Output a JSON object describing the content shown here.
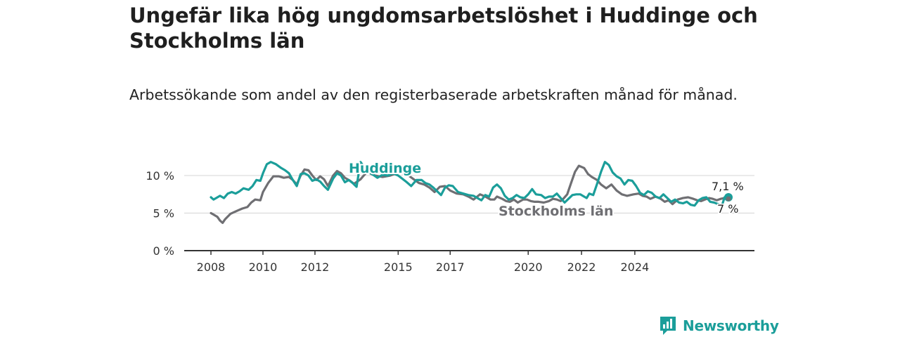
{
  "title": "Ungefär lika hög ungdomsarbetslöshet i Huddinge och Stockholms län",
  "subtitle": "Arbetssökande som andel av den registerbaserade arbetskraften månad för månad.",
  "logo": {
    "text": "Newsworthy",
    "icon": "newsworthy-chart-icon",
    "color": "#1b9e9a"
  },
  "chart_data": {
    "type": "line",
    "x_ticks": [
      "2008",
      "2010",
      "2012",
      "2015",
      "2017",
      "2020",
      "2022",
      "2024"
    ],
    "y_ticks": [
      "0 %",
      "5 %",
      "10 %"
    ],
    "ylim": [
      0,
      10
    ],
    "grid": true,
    "series": [
      {
        "name": "Stockholms län",
        "color": "#6f6f73",
        "end_label": "7 %",
        "points": [
          [
            2008.0,
            5.0
          ],
          [
            2008.1,
            4.8
          ],
          [
            2008.25,
            4.5
          ],
          [
            2008.35,
            4.0
          ],
          [
            2008.45,
            3.7
          ],
          [
            2008.55,
            4.2
          ],
          [
            2008.75,
            4.9
          ],
          [
            2009.0,
            5.3
          ],
          [
            2009.2,
            5.6
          ],
          [
            2009.4,
            5.8
          ],
          [
            2009.55,
            6.4
          ],
          [
            2009.7,
            6.8
          ],
          [
            2009.9,
            6.7
          ],
          [
            2010.0,
            7.8
          ],
          [
            2010.2,
            9.0
          ],
          [
            2010.4,
            9.9
          ],
          [
            2010.6,
            9.9
          ],
          [
            2010.8,
            9.7
          ],
          [
            2011.0,
            9.8
          ],
          [
            2011.15,
            9.4
          ],
          [
            2011.3,
            8.8
          ],
          [
            2011.45,
            10.0
          ],
          [
            2011.6,
            10.8
          ],
          [
            2011.75,
            10.7
          ],
          [
            2011.9,
            10.0
          ],
          [
            2012.05,
            9.4
          ],
          [
            2012.2,
            9.9
          ],
          [
            2012.35,
            9.5
          ],
          [
            2012.5,
            8.6
          ],
          [
            2012.7,
            10.0
          ],
          [
            2012.85,
            10.6
          ],
          [
            2013.0,
            10.3
          ],
          [
            2013.15,
            9.7
          ],
          [
            2013.35,
            9.3
          ],
          [
            2013.5,
            8.9
          ],
          [
            2013.75,
            9.5
          ],
          [
            2014.0,
            10.5
          ],
          [
            2014.3,
            10.0
          ],
          [
            2014.6,
            9.8
          ],
          [
            2014.9,
            10.0
          ],
          [
            2015.2,
            10.4
          ],
          [
            2015.4,
            10.3
          ],
          [
            2015.6,
            10.0
          ],
          [
            2015.8,
            9.5
          ],
          [
            2016.0,
            9.0
          ],
          [
            2016.2,
            8.8
          ],
          [
            2016.4,
            8.4
          ],
          [
            2016.6,
            7.8
          ],
          [
            2016.8,
            8.5
          ],
          [
            2017.0,
            8.6
          ],
          [
            2017.2,
            8.0
          ],
          [
            2017.45,
            7.6
          ],
          [
            2017.7,
            7.5
          ],
          [
            2017.9,
            7.2
          ],
          [
            2018.1,
            6.8
          ],
          [
            2018.35,
            7.5
          ],
          [
            2018.55,
            7.2
          ],
          [
            2018.75,
            6.8
          ],
          [
            2018.9,
            6.8
          ],
          [
            2019.0,
            7.2
          ],
          [
            2019.2,
            6.9
          ],
          [
            2019.35,
            6.6
          ],
          [
            2019.5,
            6.5
          ],
          [
            2019.65,
            6.8
          ],
          [
            2019.8,
            6.4
          ],
          [
            2020.0,
            6.8
          ],
          [
            2020.15,
            6.8
          ],
          [
            2020.3,
            6.6
          ],
          [
            2020.45,
            6.5
          ],
          [
            2020.6,
            6.5
          ],
          [
            2020.8,
            6.4
          ],
          [
            2021.0,
            6.6
          ],
          [
            2021.15,
            6.9
          ],
          [
            2021.3,
            6.8
          ],
          [
            2021.45,
            6.6
          ],
          [
            2021.55,
            6.9
          ],
          [
            2021.7,
            7.5
          ],
          [
            2021.85,
            9.0
          ],
          [
            2022.0,
            10.5
          ],
          [
            2022.15,
            11.3
          ],
          [
            2022.35,
            11.0
          ],
          [
            2022.5,
            10.2
          ],
          [
            2022.65,
            9.8
          ],
          [
            2022.85,
            9.4
          ],
          [
            2023.0,
            8.8
          ],
          [
            2023.2,
            8.3
          ],
          [
            2023.4,
            8.8
          ],
          [
            2023.6,
            8.0
          ],
          [
            2023.8,
            7.5
          ],
          [
            2024.0,
            7.3
          ],
          [
            2024.25,
            7.5
          ],
          [
            2024.45,
            7.6
          ],
          [
            2024.6,
            7.3
          ],
          [
            2024.75,
            7.2
          ],
          [
            2024.9,
            6.9
          ],
          [
            2025.1,
            7.2
          ],
          [
            2025.3,
            6.9
          ],
          [
            2025.45,
            6.5
          ],
          [
            2025.6,
            6.7
          ],
          [
            2025.75,
            6.2
          ],
          [
            2025.95,
            6.8
          ],
          [
            2026.15,
            7.0
          ],
          [
            2026.35,
            7.1
          ],
          [
            2026.55,
            6.9
          ],
          [
            2026.7,
            6.7
          ],
          [
            2026.85,
            6.6
          ],
          [
            2027.0,
            6.8
          ],
          [
            2027.15,
            7.0
          ],
          [
            2027.3,
            6.9
          ],
          [
            2027.45,
            6.7
          ],
          [
            2027.6,
            6.9
          ],
          [
            2027.75,
            7.0
          ],
          [
            2027.9,
            6.9
          ]
        ]
      },
      {
        "name": "Huddinge",
        "color": "#1b9e9a",
        "end_label": "7,1 %",
        "points": [
          [
            2008.0,
            7.1
          ],
          [
            2008.1,
            6.8
          ],
          [
            2008.2,
            7.0
          ],
          [
            2008.35,
            7.3
          ],
          [
            2008.5,
            7.0
          ],
          [
            2008.65,
            7.6
          ],
          [
            2008.8,
            7.8
          ],
          [
            2008.95,
            7.6
          ],
          [
            2009.1,
            7.9
          ],
          [
            2009.25,
            8.3
          ],
          [
            2009.45,
            8.1
          ],
          [
            2009.6,
            8.6
          ],
          [
            2009.75,
            9.4
          ],
          [
            2009.9,
            9.3
          ],
          [
            2010.0,
            10.3
          ],
          [
            2010.15,
            11.5
          ],
          [
            2010.3,
            11.8
          ],
          [
            2010.5,
            11.5
          ],
          [
            2010.7,
            11.0
          ],
          [
            2010.85,
            10.7
          ],
          [
            2011.0,
            10.3
          ],
          [
            2011.15,
            9.4
          ],
          [
            2011.3,
            8.6
          ],
          [
            2011.45,
            10.2
          ],
          [
            2011.6,
            10.3
          ],
          [
            2011.75,
            10.0
          ],
          [
            2011.9,
            9.3
          ],
          [
            2012.05,
            9.5
          ],
          [
            2012.2,
            9.2
          ],
          [
            2012.35,
            8.6
          ],
          [
            2012.5,
            8.1
          ],
          [
            2012.7,
            9.6
          ],
          [
            2012.85,
            10.3
          ],
          [
            2013.0,
            10.0
          ],
          [
            2013.15,
            9.1
          ],
          [
            2013.3,
            9.4
          ],
          [
            2013.45,
            9.0
          ],
          [
            2013.6,
            8.5
          ],
          [
            2013.75,
            11.8
          ],
          [
            2014.0,
            10.6
          ],
          [
            2014.2,
            10.2
          ],
          [
            2014.4,
            9.7
          ],
          [
            2014.6,
            10.1
          ],
          [
            2014.8,
            10.0
          ],
          [
            2015.0,
            10.3
          ],
          [
            2015.2,
            10.0
          ],
          [
            2015.35,
            9.6
          ],
          [
            2015.5,
            9.2
          ],
          [
            2015.7,
            8.6
          ],
          [
            2015.9,
            9.4
          ],
          [
            2016.1,
            9.4
          ],
          [
            2016.25,
            9.0
          ],
          [
            2016.4,
            8.8
          ],
          [
            2016.55,
            8.4
          ],
          [
            2016.7,
            7.9
          ],
          [
            2016.85,
            7.4
          ],
          [
            2017.0,
            8.4
          ],
          [
            2017.15,
            8.7
          ],
          [
            2017.3,
            8.6
          ],
          [
            2017.5,
            7.8
          ],
          [
            2017.7,
            7.6
          ],
          [
            2017.9,
            7.4
          ],
          [
            2018.1,
            7.3
          ],
          [
            2018.25,
            7.0
          ],
          [
            2018.4,
            6.7
          ],
          [
            2018.55,
            7.4
          ],
          [
            2018.7,
            7.2
          ],
          [
            2018.85,
            8.4
          ],
          [
            2019.0,
            8.8
          ],
          [
            2019.15,
            8.3
          ],
          [
            2019.3,
            7.3
          ],
          [
            2019.45,
            6.8
          ],
          [
            2019.6,
            7.0
          ],
          [
            2019.75,
            7.4
          ],
          [
            2019.9,
            7.1
          ],
          [
            2020.05,
            7.0
          ],
          [
            2020.2,
            7.5
          ],
          [
            2020.35,
            8.2
          ],
          [
            2020.5,
            7.5
          ],
          [
            2020.7,
            7.4
          ],
          [
            2020.85,
            7.0
          ],
          [
            2021.0,
            7.2
          ],
          [
            2021.15,
            7.2
          ],
          [
            2021.3,
            7.6
          ],
          [
            2021.45,
            7.0
          ],
          [
            2021.6,
            6.4
          ],
          [
            2021.75,
            6.9
          ],
          [
            2021.9,
            7.4
          ],
          [
            2022.05,
            7.5
          ],
          [
            2022.2,
            7.5
          ],
          [
            2022.35,
            7.2
          ],
          [
            2022.45,
            7.0
          ],
          [
            2022.55,
            7.6
          ],
          [
            2022.7,
            7.4
          ],
          [
            2022.85,
            8.9
          ],
          [
            2023.0,
            10.5
          ],
          [
            2023.15,
            11.8
          ],
          [
            2023.3,
            11.4
          ],
          [
            2023.45,
            10.4
          ],
          [
            2023.6,
            9.9
          ],
          [
            2023.75,
            9.6
          ],
          [
            2023.9,
            8.8
          ],
          [
            2024.05,
            9.4
          ],
          [
            2024.2,
            9.3
          ],
          [
            2024.35,
            8.6
          ],
          [
            2024.5,
            7.7
          ],
          [
            2024.65,
            7.4
          ],
          [
            2024.8,
            7.9
          ],
          [
            2024.95,
            7.7
          ],
          [
            2025.1,
            7.2
          ],
          [
            2025.25,
            7.0
          ],
          [
            2025.4,
            7.5
          ],
          [
            2025.55,
            7.0
          ],
          [
            2025.7,
            6.5
          ],
          [
            2025.85,
            6.8
          ],
          [
            2026.0,
            6.4
          ],
          [
            2026.15,
            6.3
          ],
          [
            2026.3,
            6.5
          ],
          [
            2026.45,
            6.1
          ],
          [
            2026.6,
            6.0
          ],
          [
            2026.75,
            6.7
          ],
          [
            2026.9,
            7.0
          ],
          [
            2027.05,
            7.1
          ],
          [
            2027.2,
            6.5
          ],
          [
            2027.35,
            6.4
          ],
          [
            2027.5,
            6.2
          ],
          [
            2027.65,
            6.0
          ],
          [
            2027.75,
            7.1
          ],
          [
            2027.9,
            7.1
          ]
        ]
      }
    ]
  }
}
